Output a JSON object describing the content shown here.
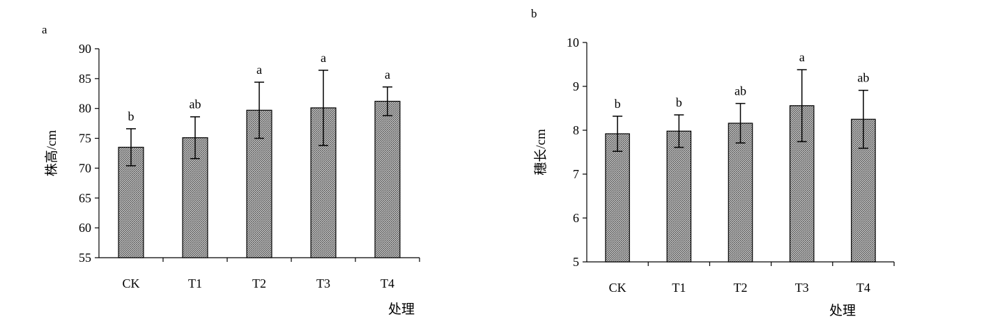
{
  "chart_data": [
    {
      "panel_label": "a",
      "type": "bar",
      "categories": [
        "CK",
        "T1",
        "T2",
        "T3",
        "T4"
      ],
      "values": [
        73.5,
        75.1,
        79.7,
        80.1,
        81.2
      ],
      "errors": [
        3.1,
        3.5,
        4.7,
        6.3,
        2.4
      ],
      "significance": [
        "b",
        "ab",
        "a",
        "a",
        "a"
      ],
      "ylabel": "株高/cm",
      "xlabel": "处理",
      "ylim": [
        55,
        90
      ],
      "yticks": [
        "55",
        "60",
        "65",
        "70",
        "75",
        "80",
        "85",
        "90"
      ],
      "bar_fill": "#8c8c8c"
    },
    {
      "panel_label": "b",
      "type": "bar",
      "categories": [
        "CK",
        "T1",
        "T2",
        "T3",
        "T4"
      ],
      "values": [
        7.92,
        7.98,
        8.16,
        8.56,
        8.25
      ],
      "errors": [
        0.4,
        0.37,
        0.45,
        0.82,
        0.66
      ],
      "significance": [
        "b",
        "b",
        "ab",
        "a",
        "ab"
      ],
      "ylabel": "穗长/cm",
      "xlabel": "处理",
      "ylim": [
        5,
        10
      ],
      "yticks": [
        "5",
        "6",
        "7",
        "8",
        "9",
        "10"
      ],
      "bar_fill": "#8c8c8c"
    }
  ]
}
